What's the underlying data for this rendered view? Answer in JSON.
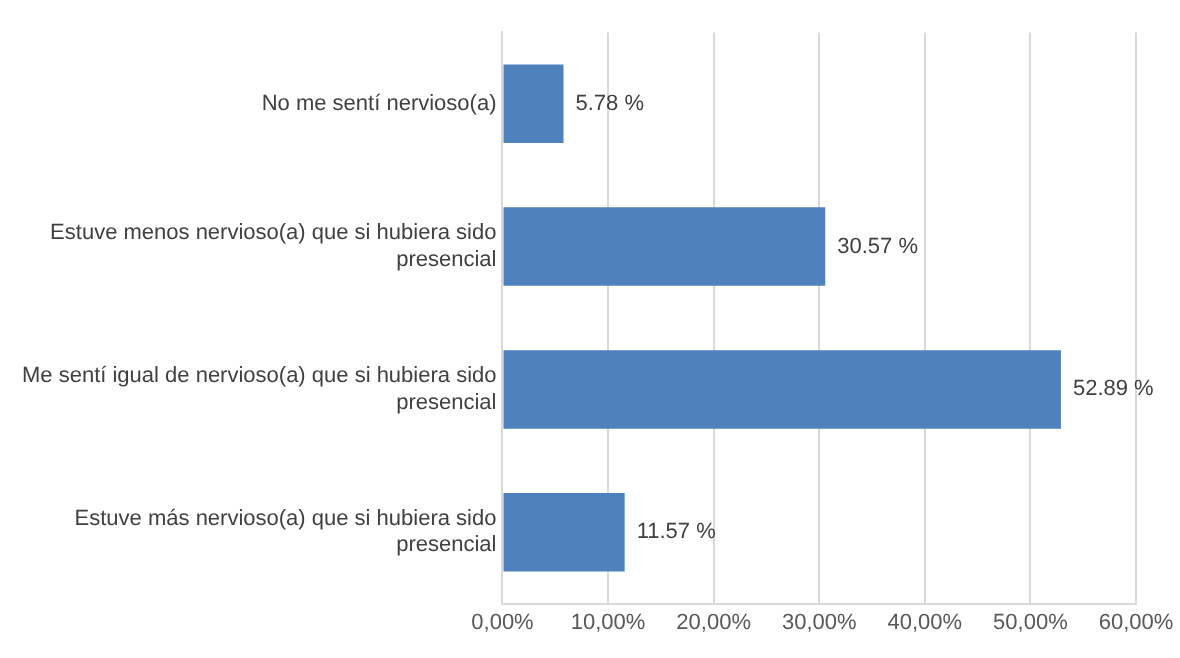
{
  "chart_data": {
    "type": "bar",
    "orientation": "horizontal",
    "categories": [
      "No me sentí nervioso(a)",
      "Estuve menos nervioso(a) que si hubiera sido presencial",
      "Me sentí igual de nervioso(a) que si hubiera sido presencial",
      "Estuve más nervioso(a) que si hubiera sido presencial"
    ],
    "values": [
      5.78,
      30.57,
      52.89,
      11.57
    ],
    "value_labels": [
      "5.78 %",
      "30.57 %",
      "52.89 %",
      "11.57 %"
    ],
    "color": "#4f81bd",
    "xlim": [
      0,
      60
    ],
    "xticks": [
      {
        "value": 0,
        "label": "0,00%"
      },
      {
        "value": 10,
        "label": "10,00%"
      },
      {
        "value": 20,
        "label": "20,00%"
      },
      {
        "value": 30,
        "label": "30,00%"
      },
      {
        "value": 40,
        "label": "40,00%"
      },
      {
        "value": 50,
        "label": "50,00%"
      },
      {
        "value": 60,
        "label": "60,00%"
      }
    ],
    "grid": "x",
    "legend": false
  }
}
